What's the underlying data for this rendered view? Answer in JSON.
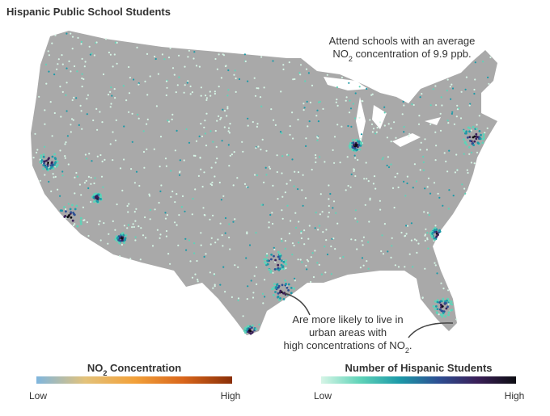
{
  "title": "Hispanic Public School Students",
  "annotations": [
    {
      "lines": [
        [
          {
            "text": "Attend schools with an average"
          }
        ],
        [
          {
            "text": "NO"
          },
          {
            "text": "2",
            "sub": true
          },
          {
            "text": " concentration of 9.9 ppb."
          }
        ]
      ]
    },
    {
      "lines": [
        [
          {
            "text": "Are more likely to live in"
          }
        ],
        [
          {
            "text": "urban areas with"
          }
        ],
        [
          {
            "text": "high concentrations of NO"
          },
          {
            "text": "2",
            "sub": true
          },
          {
            "text": "."
          }
        ]
      ]
    }
  ],
  "legends": [
    {
      "title": [
        {
          "text": "NO"
        },
        {
          "text": "2",
          "sub": true
        },
        {
          "text": " Concentration"
        }
      ],
      "low": "Low",
      "high": "High",
      "colors": [
        "#7fb6de",
        "#e3c27a",
        "#f2a13a",
        "#d9661b",
        "#8a2f08"
      ]
    },
    {
      "title": [
        {
          "text": "Number of Hispanic Students"
        }
      ],
      "low": "Low",
      "high": "High",
      "colors": [
        "#d6f5e6",
        "#5fd3b8",
        "#1c9aa8",
        "#2d4f93",
        "#3a1f58",
        "#0d0d12"
      ]
    }
  ]
}
